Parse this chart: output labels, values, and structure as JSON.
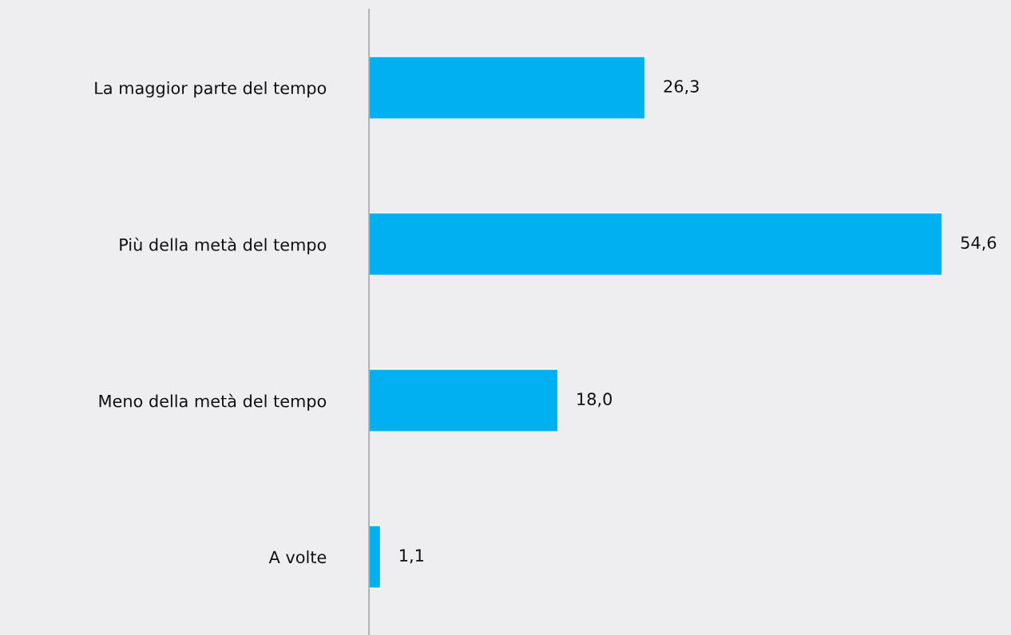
{
  "chart_data": {
    "type": "bar",
    "orientation": "horizontal",
    "categories": [
      "La maggior parte del tempo",
      "Più della metà del tempo",
      "Meno della metà del tempo",
      "A volte"
    ],
    "values": [
      26.3,
      54.6,
      18.0,
      1.1
    ],
    "value_labels": [
      "26,3",
      "54,6",
      "18,0",
      "1,1"
    ],
    "color": "#00b0f0",
    "grid": false,
    "legend": false
  }
}
